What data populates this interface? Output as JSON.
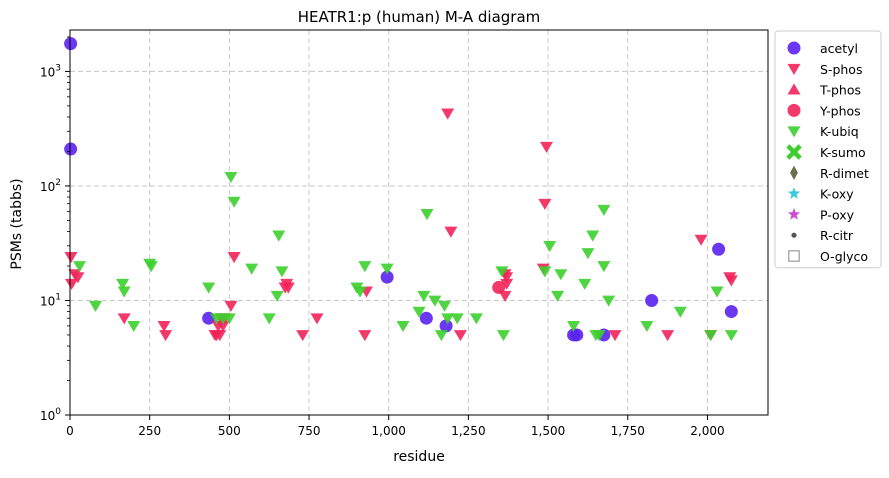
{
  "chart_data": {
    "type": "scatter",
    "title": "HEATR1:p (human) M-A diagram",
    "xlabel": "residue",
    "ylabel": "PSMs (tabbs)",
    "xlim": [
      0,
      2190
    ],
    "ylim": [
      1,
      2300
    ],
    "yscale": "log",
    "grid": true,
    "legend_position": "outside-right",
    "x_ticks": [
      {
        "value": 0,
        "label": "0"
      },
      {
        "value": 250,
        "label": "250"
      },
      {
        "value": 500,
        "label": "500"
      },
      {
        "value": 750,
        "label": "750"
      },
      {
        "value": 1000,
        "label": "1,000"
      },
      {
        "value": 1250,
        "label": "1,250"
      },
      {
        "value": 1500,
        "label": "1,500"
      },
      {
        "value": 1750,
        "label": "1,750"
      },
      {
        "value": 2000,
        "label": "2,000"
      }
    ],
    "y_ticks": [
      {
        "value": 1,
        "base": "10",
        "exp": "0"
      },
      {
        "value": 10,
        "base": "10",
        "exp": "1"
      },
      {
        "value": 100,
        "base": "10",
        "exp": "2"
      },
      {
        "value": 1000,
        "base": "10",
        "exp": "3"
      }
    ],
    "series": [
      {
        "name": "acetyl",
        "marker": "circle",
        "color": "#5a22f0",
        "points": [
          [
            2,
            1750
          ],
          [
            2,
            210
          ],
          [
            435,
            7
          ],
          [
            995,
            16
          ],
          [
            1118,
            7
          ],
          [
            1180,
            6
          ],
          [
            1580,
            5
          ],
          [
            1590,
            5
          ],
          [
            1675,
            5
          ],
          [
            1825,
            10
          ],
          [
            2035,
            28
          ],
          [
            2075,
            8
          ]
        ]
      },
      {
        "name": "S-phos",
        "marker": "triangle-down",
        "color": "#f2245a",
        "points": [
          [
            3,
            24
          ],
          [
            5,
            14
          ],
          [
            15,
            17
          ],
          [
            25,
            16
          ],
          [
            170,
            7
          ],
          [
            295,
            6
          ],
          [
            300,
            5
          ],
          [
            455,
            5
          ],
          [
            460,
            5
          ],
          [
            465,
            6
          ],
          [
            470,
            5
          ],
          [
            475,
            7
          ],
          [
            480,
            6
          ],
          [
            485,
            7
          ],
          [
            505,
            9
          ],
          [
            515,
            24
          ],
          [
            675,
            13
          ],
          [
            680,
            14
          ],
          [
            685,
            13
          ],
          [
            730,
            5
          ],
          [
            775,
            7
          ],
          [
            925,
            5
          ],
          [
            930,
            12
          ],
          [
            1185,
            430
          ],
          [
            1195,
            40
          ],
          [
            1225,
            5
          ],
          [
            1365,
            11
          ],
          [
            1370,
            14
          ],
          [
            1365,
            17
          ],
          [
            1370,
            16
          ],
          [
            1485,
            19
          ],
          [
            1490,
            70
          ],
          [
            1495,
            220
          ],
          [
            1710,
            5
          ],
          [
            1875,
            5
          ],
          [
            1980,
            34
          ],
          [
            2010,
            5
          ],
          [
            2070,
            16
          ],
          [
            2075,
            15
          ]
        ]
      },
      {
        "name": "T-phos",
        "marker": "triangle-up",
        "color": "#f2245a",
        "points": []
      },
      {
        "name": "Y-phos",
        "marker": "circle",
        "color": "#f2245a",
        "points": [
          [
            1345,
            13
          ]
        ]
      },
      {
        "name": "K-ubiq",
        "marker": "triangle-down",
        "color": "#3ccf2e",
        "points": [
          [
            30,
            20
          ],
          [
            80,
            9
          ],
          [
            165,
            14
          ],
          [
            170,
            12
          ],
          [
            200,
            6
          ],
          [
            250,
            21
          ],
          [
            255,
            20
          ],
          [
            435,
            13
          ],
          [
            460,
            7
          ],
          [
            480,
            7
          ],
          [
            500,
            7
          ],
          [
            505,
            120
          ],
          [
            515,
            73
          ],
          [
            570,
            19
          ],
          [
            625,
            7
          ],
          [
            650,
            11
          ],
          [
            655,
            37
          ],
          [
            665,
            18
          ],
          [
            900,
            13
          ],
          [
            910,
            12
          ],
          [
            925,
            20
          ],
          [
            995,
            19
          ],
          [
            1045,
            6
          ],
          [
            1095,
            8
          ],
          [
            1110,
            11
          ],
          [
            1120,
            57
          ],
          [
            1145,
            10
          ],
          [
            1165,
            5
          ],
          [
            1175,
            9
          ],
          [
            1185,
            7
          ],
          [
            1215,
            7
          ],
          [
            1275,
            7
          ],
          [
            1355,
            18
          ],
          [
            1360,
            5
          ],
          [
            1490,
            18
          ],
          [
            1505,
            30
          ],
          [
            1530,
            11
          ],
          [
            1540,
            17
          ],
          [
            1580,
            6
          ],
          [
            1615,
            14
          ],
          [
            1625,
            26
          ],
          [
            1640,
            37
          ],
          [
            1650,
            5
          ],
          [
            1660,
            5
          ],
          [
            1675,
            62
          ],
          [
            1675,
            20
          ],
          [
            1690,
            10
          ],
          [
            1810,
            6
          ],
          [
            1915,
            8
          ],
          [
            2010,
            5
          ],
          [
            2030,
            12
          ],
          [
            2075,
            5
          ]
        ]
      },
      {
        "name": "K-sumo",
        "marker": "x",
        "color": "#3ccf2e",
        "points": []
      },
      {
        "name": "R-dimet",
        "marker": "diamond",
        "color": "#6e6e4a",
        "points": []
      },
      {
        "name": "K-oxy",
        "marker": "star",
        "color": "#3fc9d8",
        "points": []
      },
      {
        "name": "P-oxy",
        "marker": "star",
        "color": "#c74fd0",
        "points": []
      },
      {
        "name": "R-citr",
        "marker": "dot",
        "color": "#555555",
        "points": []
      },
      {
        "name": "O-glyco",
        "marker": "square-open",
        "color": "#999999",
        "points": []
      }
    ]
  }
}
